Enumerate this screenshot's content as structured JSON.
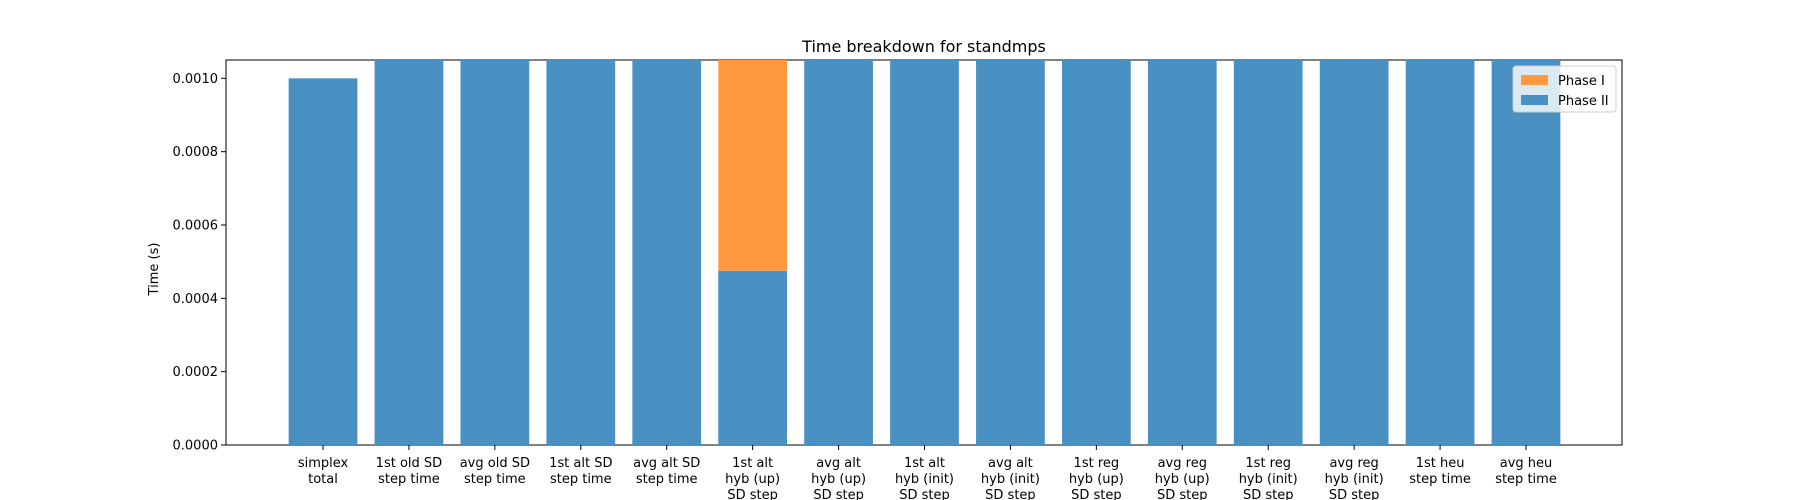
{
  "chart_data": {
    "type": "bar",
    "stacked": true,
    "title": "Time breakdown for standmps",
    "xlabel": "",
    "ylabel": "Time (s)",
    "ylim": [
      0,
      0.00105
    ],
    "yticks": [
      "0.0000",
      "0.0002",
      "0.0004",
      "0.0006",
      "0.0008",
      "0.0010"
    ],
    "grid": false,
    "legend_position": "top-right",
    "categories": [
      [
        "simplex",
        "total"
      ],
      [
        "1st old SD",
        "step time"
      ],
      [
        "avg old SD",
        "step time"
      ],
      [
        "1st alt SD",
        "step time"
      ],
      [
        "avg alt SD",
        "step time"
      ],
      [
        "1st alt",
        "hyb (up)",
        "SD step"
      ],
      [
        "avg alt",
        "hyb (up)",
        "SD step"
      ],
      [
        "1st alt",
        "hyb (init)",
        "SD step"
      ],
      [
        "avg alt",
        "hyb (init)",
        "SD step"
      ],
      [
        "1st reg",
        "hyb (up)",
        "SD step"
      ],
      [
        "avg reg",
        "hyb (up)",
        "SD step"
      ],
      [
        "1st reg",
        "hyb (init)",
        "SD step"
      ],
      [
        "avg reg",
        "hyb (init)",
        "SD step"
      ],
      [
        "1st heu",
        "step time"
      ],
      [
        "avg heu",
        "step time"
      ]
    ],
    "series": [
      {
        "name": "Phase II",
        "color": "#4a91c3",
        "values": [
          0.001,
          0.00105,
          0.00105,
          0.00105,
          0.00105,
          0.000475,
          0.00105,
          0.00105,
          0.00105,
          0.00105,
          0.00105,
          0.00105,
          0.00105,
          0.00105,
          0.00105
        ]
      },
      {
        "name": "Phase I",
        "color": "#ff993f",
        "values": [
          0,
          0,
          0,
          0,
          0,
          0.000575,
          0,
          0,
          0,
          0,
          0,
          0,
          0,
          0,
          0
        ]
      }
    ],
    "legend_order": [
      "Phase I",
      "Phase II"
    ]
  }
}
